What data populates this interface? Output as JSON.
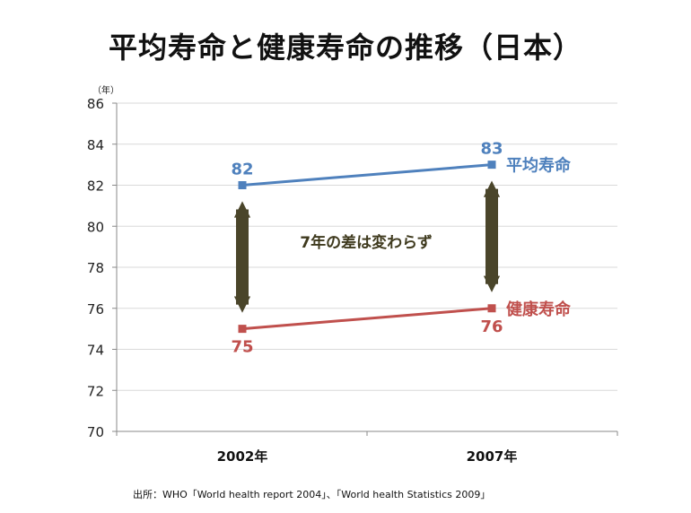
{
  "title": "平均寿命と健康寿命の推移（日本）",
  "source": "出所：WHO「World health report 2004」、「World health Statistics  2009」",
  "annotation": "7年の差は変わらず",
  "colors": {
    "avg": "#4F81BD",
    "healthy": "#C0504D",
    "arrow": "#4A452A",
    "grid": "#D9D9D9"
  },
  "chart_data": {
    "type": "line",
    "categories": [
      "2002年",
      "2007年"
    ],
    "ylabel": "（年）",
    "ylim": [
      70,
      86
    ],
    "yticks": [
      70,
      72,
      74,
      76,
      78,
      80,
      82,
      84,
      86
    ],
    "grid": true,
    "series": [
      {
        "name": "平均寿命",
        "values": [
          82,
          83
        ]
      },
      {
        "name": "健康寿命",
        "values": [
          75,
          76
        ]
      }
    ]
  }
}
